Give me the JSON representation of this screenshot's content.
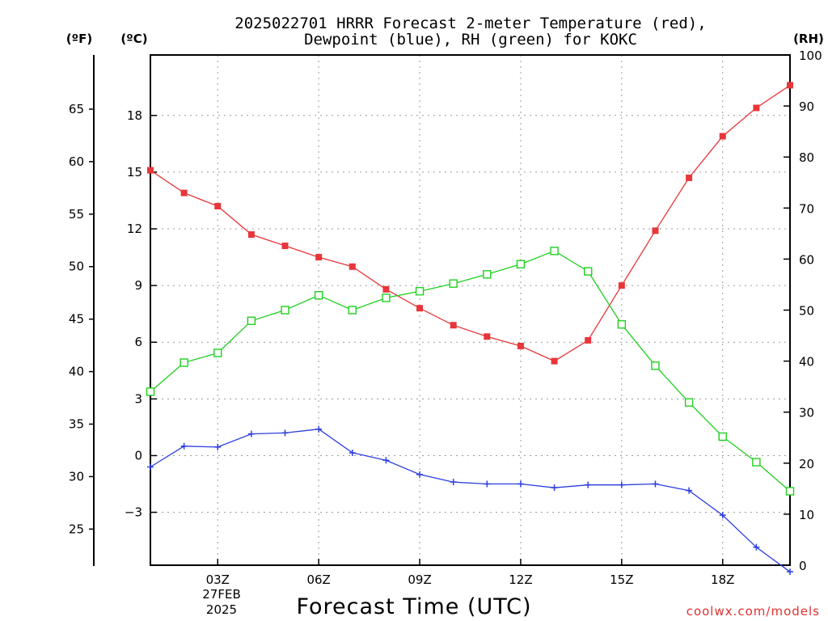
{
  "chart_data": {
    "type": "line",
    "title_line1": "2025022701 HRRR Forecast 2-meter Temperature (red),",
    "title_line2": "Dewpoint (blue), RH (green) for KOKC",
    "xlabel": "Forecast Time (UTC)",
    "date_label_day": "27FEB",
    "date_label_year": "2025",
    "watermark": "coolwx.com/models",
    "units": {
      "fahrenheit": "(ºF)",
      "celsius": "(ºC)",
      "rh": "(RH)"
    },
    "x_range": [
      1,
      20
    ],
    "x_ticks": [
      {
        "x": 3,
        "label": "03Z"
      },
      {
        "x": 6,
        "label": "06Z"
      },
      {
        "x": 9,
        "label": "09Z"
      },
      {
        "x": 12,
        "label": "12Z"
      },
      {
        "x": 15,
        "label": "15Z"
      },
      {
        "x": 18,
        "label": "18Z"
      }
    ],
    "celsius_axis": {
      "range": [
        -5.8,
        21.2
      ],
      "ticks": [
        -3,
        0,
        3,
        6,
        9,
        12,
        15,
        18
      ]
    },
    "fahrenheit_axis": {
      "ticks": [
        25,
        30,
        35,
        40,
        45,
        50,
        55,
        60,
        65
      ]
    },
    "rh_axis": {
      "range": [
        0,
        100
      ],
      "ticks": [
        0,
        10,
        20,
        30,
        40,
        50,
        60,
        70,
        80,
        90,
        100
      ]
    },
    "grid": true,
    "x": [
      1,
      2,
      3,
      4,
      5,
      6,
      7,
      8,
      9,
      10,
      11,
      12,
      13,
      14,
      15,
      16,
      17,
      18,
      19,
      20
    ],
    "series": [
      {
        "name": "Temperature",
        "axis": "celsius",
        "color": "#e8363a",
        "marker": "filled-square",
        "values": [
          15.1,
          13.9,
          13.2,
          11.7,
          11.1,
          10.5,
          10.0,
          8.8,
          7.8,
          6.9,
          6.3,
          5.8,
          5.0,
          6.1,
          9.0,
          11.9,
          14.7,
          16.9,
          18.4,
          19.6
        ]
      },
      {
        "name": "Dewpoint",
        "axis": "celsius",
        "color": "#2b3fe0",
        "marker": "plus",
        "values": [
          -0.6,
          0.5,
          0.45,
          1.15,
          1.2,
          1.4,
          0.15,
          -0.25,
          -1.0,
          -1.4,
          -1.5,
          -1.5,
          -1.7,
          -1.55,
          -1.55,
          -1.5,
          -1.85,
          -3.15,
          -4.85,
          -6.15
        ]
      },
      {
        "name": "RH",
        "axis": "rh",
        "color": "#1fd01f",
        "marker": "open-square",
        "values": [
          34,
          39.7,
          41.6,
          47.9,
          50,
          52.9,
          50,
          52.4,
          53.7,
          55.2,
          57,
          59,
          61.6,
          57.6,
          47.2,
          39.1,
          31.9,
          25.2,
          20.2,
          14.5
        ]
      }
    ]
  }
}
